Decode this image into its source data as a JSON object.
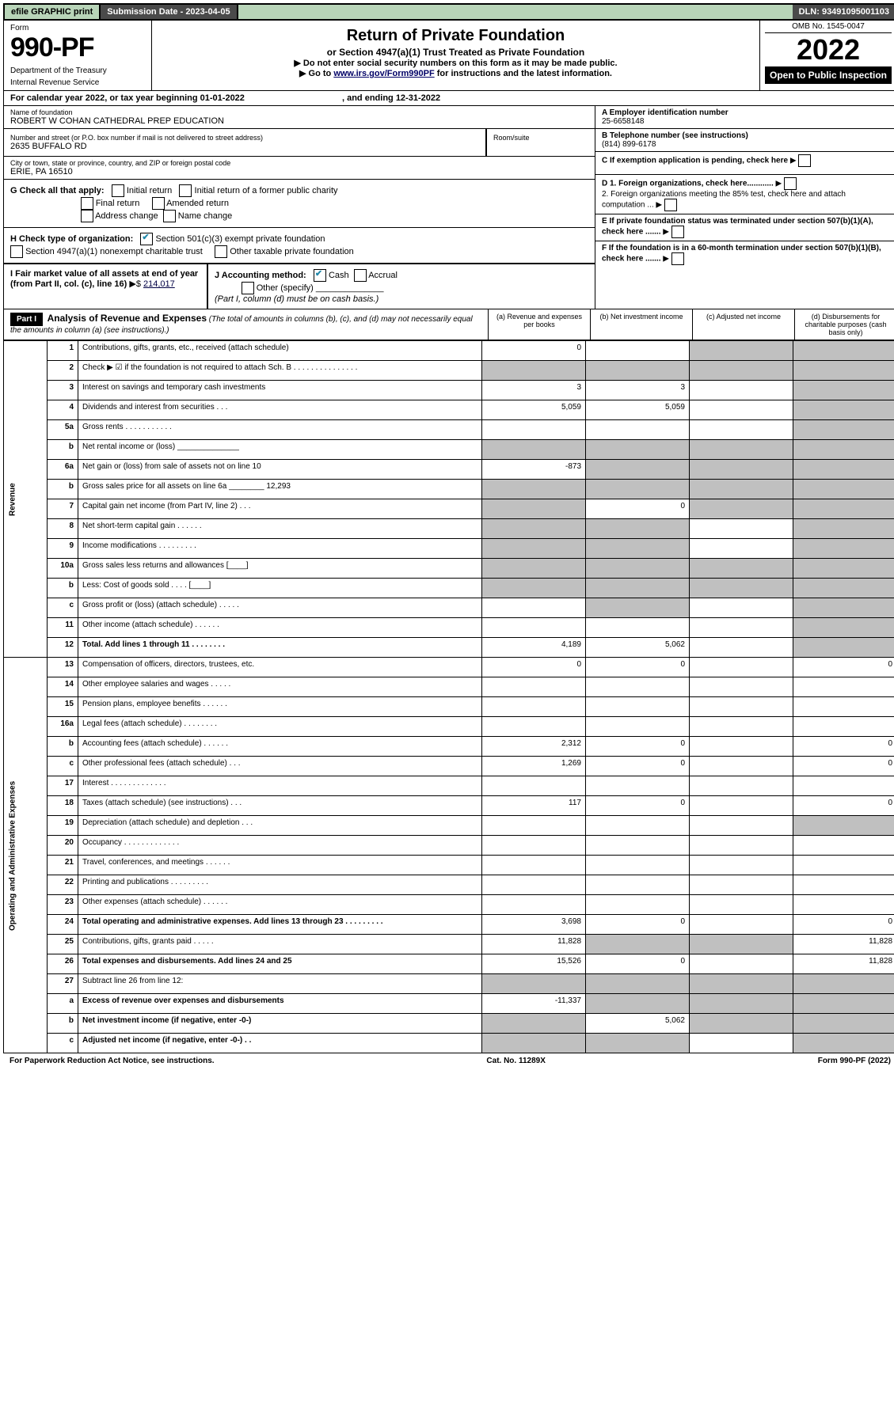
{
  "top_bar": {
    "efile": "efile GRAPHIC print",
    "submission": "Submission Date - 2023-04-05",
    "dln": "DLN: 93491095001103"
  },
  "header": {
    "form_label": "Form",
    "form_number": "990-PF",
    "dept": "Department of the Treasury",
    "irs": "Internal Revenue Service",
    "title": "Return of Private Foundation",
    "subtitle": "or Section 4947(a)(1) Trust Treated as Private Foundation",
    "instr1": "▶ Do not enter social security numbers on this form as it may be made public.",
    "instr2_pre": "▶ Go to ",
    "instr2_link": "www.irs.gov/Form990PF",
    "instr2_post": " for instructions and the latest information.",
    "omb": "OMB No. 1545-0047",
    "year": "2022",
    "open_public": "Open to Public Inspection"
  },
  "calendar_year": "For calendar year 2022, or tax year beginning 01-01-2022",
  "calendar_year_end": ", and ending 12-31-2022",
  "info": {
    "name_label": "Name of foundation",
    "name": "ROBERT W COHAN CATHEDRAL PREP EDUCATION",
    "addr_label": "Number and street (or P.O. box number if mail is not delivered to street address)",
    "addr": "2635 BUFFALO RD",
    "room_label": "Room/suite",
    "city_label": "City or town, state or province, country, and ZIP or foreign postal code",
    "city": "ERIE, PA  16510",
    "ein_label": "A Employer identification number",
    "ein": "25-6658148",
    "phone_label": "B Telephone number (see instructions)",
    "phone": "(814) 899-6178",
    "c_label": "C If exemption application is pending, check here",
    "g_label": "G Check all that apply:",
    "g_initial": "Initial return",
    "g_initial_former": "Initial return of a former public charity",
    "g_final": "Final return",
    "g_amended": "Amended return",
    "g_addr": "Address change",
    "g_name": "Name change",
    "d1": "D 1. Foreign organizations, check here............",
    "d2": "2. Foreign organizations meeting the 85% test, check here and attach computation ...",
    "h_label": "H Check type of organization:",
    "h_501c3": "Section 501(c)(3) exempt private foundation",
    "h_4947": "Section 4947(a)(1) nonexempt charitable trust",
    "h_other": "Other taxable private foundation",
    "e_label": "E If private foundation status was terminated under section 507(b)(1)(A), check here .......",
    "i_label": "I Fair market value of all assets at end of year (from Part II, col. (c), line 16)",
    "i_value": "214,017",
    "j_label": "J Accounting method:",
    "j_cash": "Cash",
    "j_accrual": "Accrual",
    "j_other": "Other (specify)",
    "j_note": "(Part I, column (d) must be on cash basis.)",
    "f_label": "F  If the foundation is in a 60-month termination under section 507(b)(1)(B), check here ......."
  },
  "part1": {
    "label": "Part I",
    "title": "Analysis of Revenue and Expenses",
    "note": "(The total of amounts in columns (b), (c), and (d) may not necessarily equal the amounts in column (a) (see instructions).)",
    "col_a": "(a) Revenue and expenses per books",
    "col_b": "(b) Net investment income",
    "col_c": "(c) Adjusted net income",
    "col_d": "(d) Disbursements for charitable purposes (cash basis only)"
  },
  "section_labels": {
    "revenue": "Revenue",
    "expenses": "Operating and Administrative Expenses"
  },
  "rows": [
    {
      "n": "1",
      "desc": "Contributions, gifts, grants, etc., received (attach schedule)",
      "a": "0",
      "b": "",
      "c_grey": true,
      "d_grey": true
    },
    {
      "n": "2",
      "desc": "Check ▶ ☑ if the foundation is not required to attach Sch. B   .  .  .  .  .  .  .  .  .  .  .  .  .  .  .",
      "a_grey": true,
      "b_grey": true,
      "c_grey": true,
      "d_grey": true
    },
    {
      "n": "3",
      "desc": "Interest on savings and temporary cash investments",
      "a": "3",
      "b": "3",
      "c": "",
      "d_grey": true
    },
    {
      "n": "4",
      "desc": "Dividends and interest from securities   .  .  .",
      "a": "5,059",
      "b": "5,059",
      "c": "",
      "d_grey": true
    },
    {
      "n": "5a",
      "desc": "Gross rents   .  .  .  .  .  .  .  .  .  .  .",
      "a": "",
      "b": "",
      "c": "",
      "d_grey": true
    },
    {
      "n": "b",
      "desc": "Net rental income or (loss)  ______________",
      "a_grey": true,
      "b_grey": true,
      "c_grey": true,
      "d_grey": true
    },
    {
      "n": "6a",
      "desc": "Net gain or (loss) from sale of assets not on line 10",
      "a": "-873",
      "b_grey": true,
      "c_grey": true,
      "d_grey": true
    },
    {
      "n": "b",
      "desc": "Gross sales price for all assets on line 6a ________ 12,293",
      "a_grey": true,
      "b_grey": true,
      "c_grey": true,
      "d_grey": true
    },
    {
      "n": "7",
      "desc": "Capital gain net income (from Part IV, line 2)   .  .  .",
      "a_grey": true,
      "b": "0",
      "c_grey": true,
      "d_grey": true
    },
    {
      "n": "8",
      "desc": "Net short-term capital gain   .  .  .  .  .  .",
      "a_grey": true,
      "b_grey": true,
      "c": "",
      "d_grey": true
    },
    {
      "n": "9",
      "desc": "Income modifications .  .  .  .  .  .  .  .  .",
      "a_grey": true,
      "b_grey": true,
      "c": "",
      "d_grey": true
    },
    {
      "n": "10a",
      "desc": "Gross sales less returns and allowances  [____]",
      "a_grey": true,
      "b_grey": true,
      "c_grey": true,
      "d_grey": true
    },
    {
      "n": "b",
      "desc": "Less: Cost of goods sold     .  .  .  .  [____]",
      "a_grey": true,
      "b_grey": true,
      "c_grey": true,
      "d_grey": true
    },
    {
      "n": "c",
      "desc": "Gross profit or (loss) (attach schedule)   .  .  .  .  .",
      "a": "",
      "b_grey": true,
      "c": "",
      "d_grey": true
    },
    {
      "n": "11",
      "desc": "Other income (attach schedule)   .  .  .  .  .  .",
      "a": "",
      "b": "",
      "c": "",
      "d_grey": true
    },
    {
      "n": "12",
      "desc": "Total. Add lines 1 through 11   .  .  .  .  .  .  .  .",
      "bold": true,
      "a": "4,189",
      "b": "5,062",
      "c": "",
      "d_grey": true
    },
    {
      "n": "13",
      "desc": "Compensation of officers, directors, trustees, etc.",
      "a": "0",
      "b": "0",
      "c": "",
      "d": "0"
    },
    {
      "n": "14",
      "desc": "Other employee salaries and wages   .  .  .  .  .",
      "a": "",
      "b": "",
      "c": "",
      "d": ""
    },
    {
      "n": "15",
      "desc": "Pension plans, employee benefits  .  .  .  .  .  .",
      "a": "",
      "b": "",
      "c": "",
      "d": ""
    },
    {
      "n": "16a",
      "desc": "Legal fees (attach schedule) .  .  .  .  .  .  .  .",
      "a": "",
      "b": "",
      "c": "",
      "d": ""
    },
    {
      "n": "b",
      "desc": "Accounting fees (attach schedule) .  .  .  .  .  .",
      "a": "2,312",
      "b": "0",
      "c": "",
      "d": "0"
    },
    {
      "n": "c",
      "desc": "Other professional fees (attach schedule)   .  .  .",
      "a": "1,269",
      "b": "0",
      "c": "",
      "d": "0"
    },
    {
      "n": "17",
      "desc": "Interest  .  .  .  .  .  .  .  .  .  .  .  .  .",
      "a": "",
      "b": "",
      "c": "",
      "d": ""
    },
    {
      "n": "18",
      "desc": "Taxes (attach schedule) (see instructions)   .  .  .",
      "a": "117",
      "b": "0",
      "c": "",
      "d": "0"
    },
    {
      "n": "19",
      "desc": "Depreciation (attach schedule) and depletion   .  .  .",
      "a": "",
      "b": "",
      "c": "",
      "d_grey": true
    },
    {
      "n": "20",
      "desc": "Occupancy .  .  .  .  .  .  .  .  .  .  .  .  .",
      "a": "",
      "b": "",
      "c": "",
      "d": ""
    },
    {
      "n": "21",
      "desc": "Travel, conferences, and meetings .  .  .  .  .  .",
      "a": "",
      "b": "",
      "c": "",
      "d": ""
    },
    {
      "n": "22",
      "desc": "Printing and publications .  .  .  .  .  .  .  .  .",
      "a": "",
      "b": "",
      "c": "",
      "d": ""
    },
    {
      "n": "23",
      "desc": "Other expenses (attach schedule) .  .  .  .  .  .",
      "a": "",
      "b": "",
      "c": "",
      "d": ""
    },
    {
      "n": "24",
      "desc": "Total operating and administrative expenses. Add lines 13 through 23   .  .  .  .  .  .  .  .  .",
      "bold": true,
      "a": "3,698",
      "b": "0",
      "c": "",
      "d": "0"
    },
    {
      "n": "25",
      "desc": "Contributions, gifts, grants paid   .  .  .  .  .",
      "a": "11,828",
      "b_grey": true,
      "c_grey": true,
      "d": "11,828"
    },
    {
      "n": "26",
      "desc": "Total expenses and disbursements. Add lines 24 and 25",
      "bold": true,
      "a": "15,526",
      "b": "0",
      "c": "",
      "d": "11,828"
    },
    {
      "n": "27",
      "desc": "Subtract line 26 from line 12:",
      "a_grey": true,
      "b_grey": true,
      "c_grey": true,
      "d_grey": true
    },
    {
      "n": "a",
      "desc": "Excess of revenue over expenses and disbursements",
      "bold": true,
      "a": "-11,337",
      "b_grey": true,
      "c_grey": true,
      "d_grey": true
    },
    {
      "n": "b",
      "desc": "Net investment income (if negative, enter -0-)",
      "bold": true,
      "a_grey": true,
      "b": "5,062",
      "c_grey": true,
      "d_grey": true
    },
    {
      "n": "c",
      "desc": "Adjusted net income (if negative, enter -0-)  .  .",
      "bold": true,
      "a_grey": true,
      "b_grey": true,
      "c": "",
      "d_grey": true
    }
  ],
  "footer": {
    "left": "For Paperwork Reduction Act Notice, see instructions.",
    "mid": "Cat. No. 11289X",
    "right": "Form 990-PF (2022)"
  },
  "colors": {
    "header_green": "#b8d4b8",
    "dark_bar": "#4a4a4a",
    "grey_cell": "#c0c0c0",
    "link": "#004488"
  }
}
